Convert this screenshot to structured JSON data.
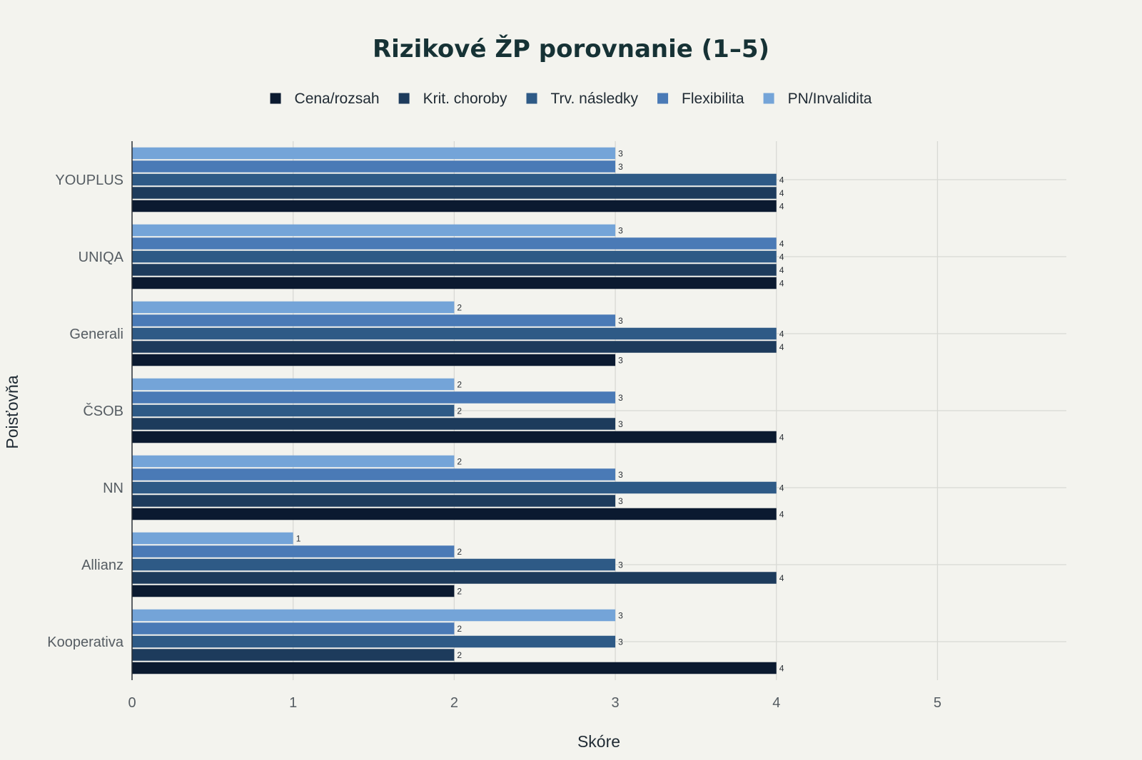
{
  "chart_data": {
    "type": "bar",
    "orientation": "horizontal",
    "title": "Rizikové ŽP porovnanie (1–5)",
    "xlabel": "Skóre",
    "ylabel": "Poisťovňa",
    "xlim": [
      0,
      5.8
    ],
    "xticks": [
      0,
      1,
      2,
      3,
      4,
      5
    ],
    "grid": true,
    "legend_position": "top-center",
    "categories": [
      "YOUPLUS",
      "UNIQA",
      "Generali",
      "ČSOB",
      "NN",
      "Allianz",
      "Kooperativa"
    ],
    "series": [
      {
        "name": "Cena/rozsah",
        "color": "#0b1a30",
        "values": [
          4,
          4,
          3,
          4,
          4,
          2,
          4
        ]
      },
      {
        "name": "Krit. choroby",
        "color": "#1d3b5c",
        "values": [
          4,
          4,
          4,
          3,
          3,
          4,
          2
        ]
      },
      {
        "name": "Trv. následky",
        "color": "#2e5a86",
        "values": [
          4,
          4,
          4,
          2,
          4,
          3,
          3
        ]
      },
      {
        "name": "Flexibilita",
        "color": "#4a7ab6",
        "values": [
          3,
          4,
          3,
          3,
          3,
          2,
          2
        ]
      },
      {
        "name": "PN/Invalidita",
        "color": "#74a4d8",
        "values": [
          3,
          3,
          2,
          2,
          2,
          1,
          3
        ]
      }
    ]
  }
}
